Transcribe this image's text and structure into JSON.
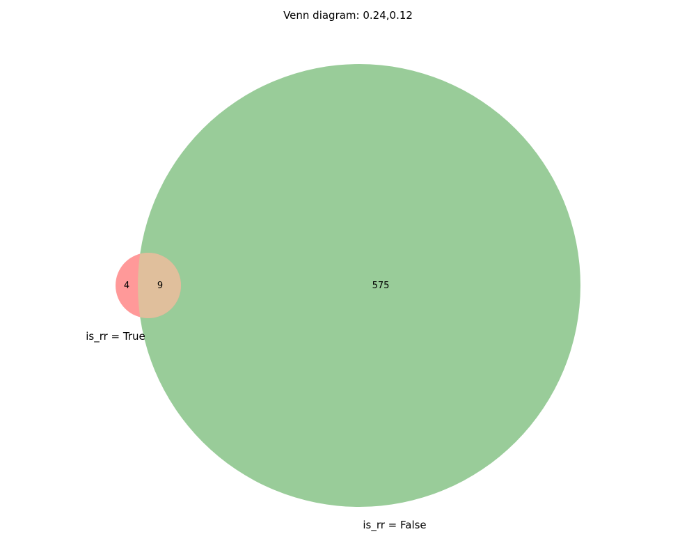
{
  "title": "Venn diagram: 0.24,0.12",
  "sets": [
    {
      "label": "is_rr = True",
      "color": "#ff9999"
    },
    {
      "label": "is_rr = False",
      "color": "#99cc99"
    }
  ],
  "overlap_color": "#e0bf9c",
  "subsets": {
    "only_true": "4",
    "both": "9",
    "only_false": "575"
  }
}
